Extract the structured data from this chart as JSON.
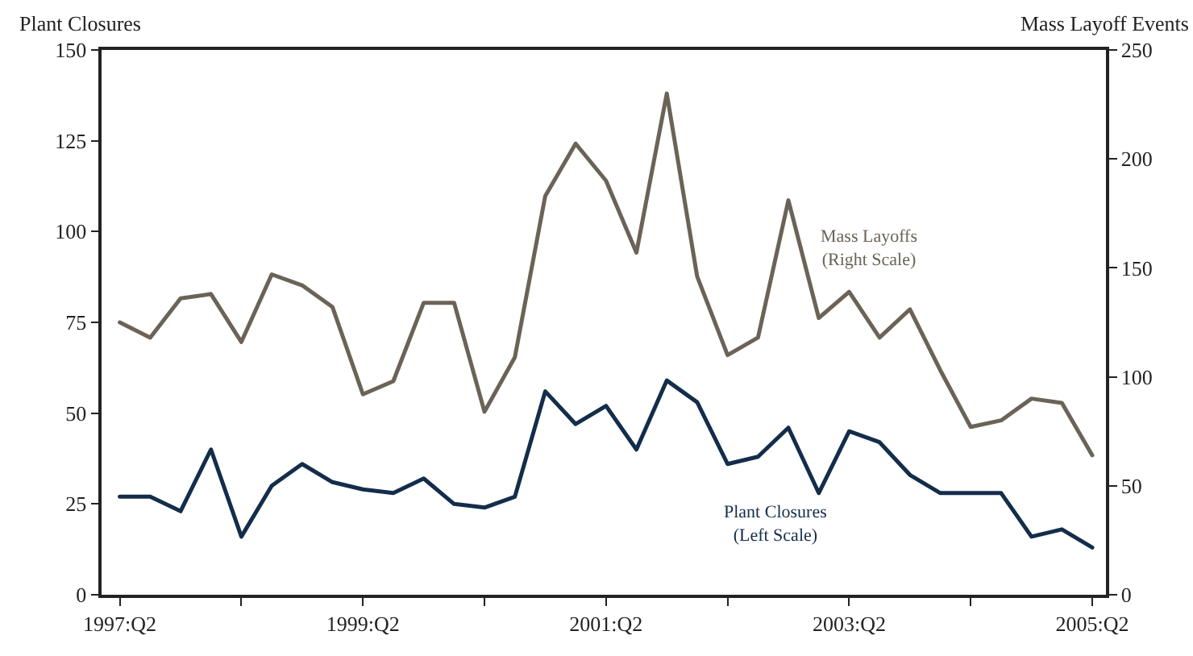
{
  "chart_data": {
    "type": "line",
    "ylabel": "Plant Closures",
    "y2label": "Mass Layoff Events",
    "categories": [
      "1997:Q2",
      null,
      null,
      null,
      null,
      null,
      null,
      null,
      "1999:Q2",
      null,
      null,
      null,
      null,
      null,
      null,
      null,
      "2001:Q2",
      null,
      null,
      null,
      null,
      null,
      null,
      null,
      "2003:Q2",
      null,
      null,
      null,
      null,
      null,
      null,
      null,
      "2005:Q2"
    ],
    "series": [
      {
        "name": "Mass Layoffs\n(Right Scale)",
        "color": "#6b6357",
        "axis": "y2",
        "values": [
          125,
          118,
          136,
          138,
          116,
          147,
          142,
          132,
          92,
          98,
          134,
          134,
          84,
          109,
          183,
          207,
          190,
          157,
          230,
          146,
          110,
          118,
          181,
          127,
          139,
          118,
          131,
          103,
          77,
          80,
          90,
          88,
          64
        ]
      },
      {
        "name": "Plant Closures\n(Left Scale)",
        "color": "#132d4a",
        "values": [
          27,
          27,
          23,
          40,
          16,
          30,
          36,
          31,
          29,
          28,
          32,
          25,
          24,
          27,
          56,
          47,
          52,
          40,
          59,
          53,
          36,
          38,
          46,
          28,
          45,
          42,
          33,
          28,
          28,
          28,
          16,
          18,
          13
        ]
      }
    ],
    "ylim": [
      0,
      150
    ],
    "yticks": [
      0,
      25,
      50,
      75,
      100,
      125,
      150
    ],
    "y2lim": [
      0,
      250
    ],
    "y2ticks": [
      0,
      50,
      100,
      150,
      200,
      250
    ],
    "legend": false,
    "marker": "none",
    "line_style": "solid"
  }
}
